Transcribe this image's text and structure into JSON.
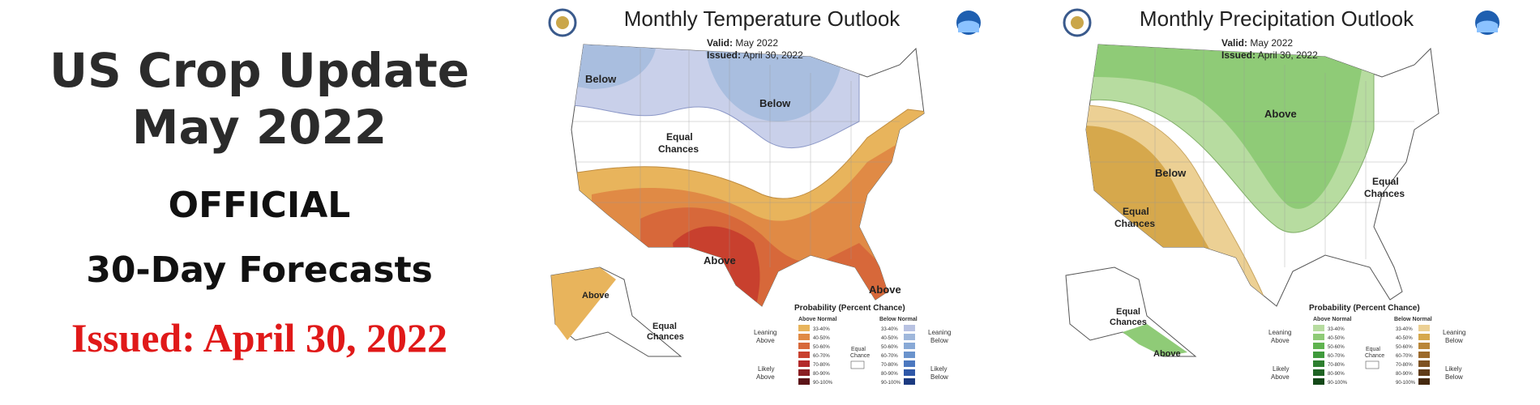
{
  "header": {
    "title_line1": "US Crop Update",
    "title_line2": "May 2022",
    "subtitle_line1": "OFFICIAL",
    "subtitle_line2": "30-Day Forecasts",
    "issued": "Issued: April 30, 2022"
  },
  "maps": [
    {
      "title": "Monthly Temperature Outlook",
      "valid_label": "Valid:",
      "valid_value": "May 2022",
      "issued_label": "Issued:",
      "issued_value": "April 30, 2022",
      "labels": {
        "below_west": "Below",
        "below_north": "Below",
        "equal_1": "Equal",
        "equal_2": "Chances",
        "above_south": "Above",
        "above_fl": "Above",
        "above_ak": "Above",
        "equal_ak_1": "Equal",
        "equal_ak_2": "Chances"
      },
      "legend": {
        "title": "Probability (Percent Chance)",
        "above_header": "Above Normal",
        "below_header": "Below Normal",
        "leaning_above_1": "Leaning",
        "leaning_above_2": "Above",
        "likely_above_1": "Likely",
        "likely_above_2": "Above",
        "equal_1": "Equal",
        "equal_2": "Chance",
        "leaning_below_1": "Leaning",
        "leaning_below_2": "Below",
        "likely_below_1": "Likely",
        "likely_below_2": "Below",
        "ranges": [
          "33-40%",
          "40-50%",
          "50-60%",
          "60-70%",
          "70-80%",
          "80-90%",
          "90-100%"
        ],
        "above_colors": [
          "#e8b45c",
          "#e08a45",
          "#d7683a",
          "#c8402e",
          "#b3292a",
          "#8a1e22",
          "#5c1418"
        ],
        "below_colors": [
          "#b8c2e2",
          "#9fb7db",
          "#88a9d6",
          "#6a93cc",
          "#4c78bf",
          "#2f58a8",
          "#1b3a80"
        ]
      }
    },
    {
      "title": "Monthly Precipitation Outlook",
      "valid_label": "Valid:",
      "valid_value": "May 2022",
      "issued_label": "Issued:",
      "issued_value": "April 30, 2022",
      "labels": {
        "above_north": "Above",
        "below_west": "Below",
        "equal_w_1": "Equal",
        "equal_w_2": "Chances",
        "equal_e_1": "Equal",
        "equal_e_2": "Chances",
        "equal_ak_1": "Equal",
        "equal_ak_2": "Chances",
        "above_ak": "Above"
      },
      "legend": {
        "title": "Probability (Percent Chance)",
        "above_header": "Above Normal",
        "below_header": "Below Normal",
        "leaning_above_1": "Leaning",
        "leaning_above_2": "Above",
        "likely_above_1": "Likely",
        "likely_above_2": "Above",
        "equal_1": "Equal",
        "equal_2": "Chance",
        "leaning_below_1": "Leaning",
        "leaning_below_2": "Below",
        "likely_below_1": "Likely",
        "likely_below_2": "Below",
        "ranges": [
          "33-40%",
          "40-50%",
          "50-60%",
          "60-70%",
          "70-80%",
          "80-90%",
          "90-100%"
        ],
        "above_colors": [
          "#b7dca0",
          "#8fcb77",
          "#5fb34f",
          "#3f9a3c",
          "#2d7f2f",
          "#1f6424",
          "#134818"
        ],
        "below_colors": [
          "#ecd094",
          "#d6a84c",
          "#b98638",
          "#9c6a2c",
          "#7e5222",
          "#603c18",
          "#45290f"
        ]
      }
    }
  ],
  "colors": {
    "map_outline": "#555555",
    "temp_below_light": "#c9d0ea",
    "temp_below": "#a9bedf",
    "temp_above_33": "#e8b45c",
    "temp_above_40": "#e08a45",
    "temp_above_50": "#d7683a",
    "temp_above_60": "#c8402e",
    "precip_above_33": "#b7dca0",
    "precip_above_40": "#8fcb77",
    "precip_below_33": "#ecd094",
    "precip_below_40": "#d6a84c"
  },
  "icons": [
    "commerce-seal-icon",
    "noaa-logo-icon"
  ]
}
